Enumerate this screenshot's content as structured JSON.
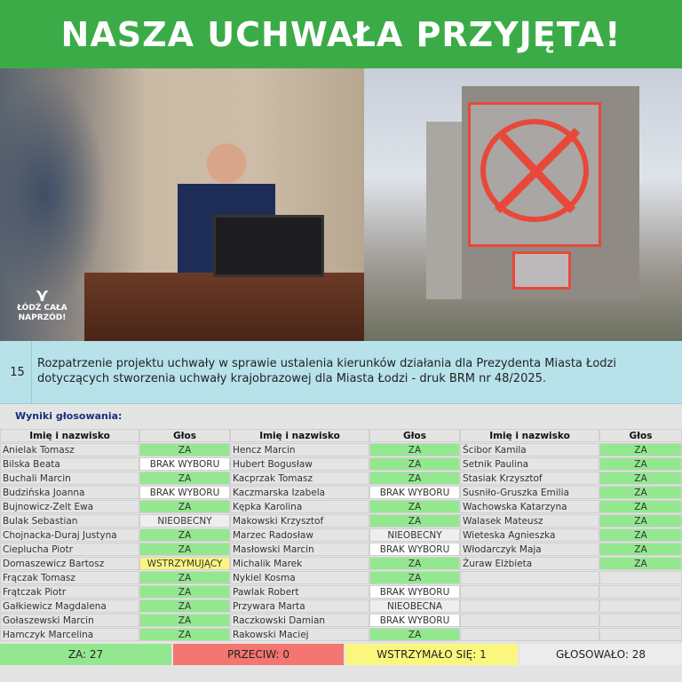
{
  "header": {
    "title": "NASZA UCHWAŁA PRZYJĘTA!"
  },
  "logo": {
    "text": "ŁÓDŹ CAŁA NAPRZÓD!"
  },
  "item": {
    "number": "15",
    "text": "Rozpatrzenie projektu uchwały w sprawie ustalenia kierunków działania dla Prezydenta Miasta Łodzi dotyczących stworzenia uchwały krajobrazowej dla Miasta Łodzi - druk BRM nr 48/2025."
  },
  "results_label": "Wyniki głosowania:",
  "columns": {
    "name": "Imię i nazwisko",
    "vote": "Głos"
  },
  "vote_colors": {
    "ZA": "#93e88f",
    "BRAK WYBORU": "#ffffff",
    "NIEOBECNY": "#eeeeee",
    "NIEOBECNA": "#eeeeee",
    "WSTRZYMUJĄCY": "#fbf77e"
  },
  "groups": [
    [
      [
        "Anielak Tomasz",
        "ZA"
      ],
      [
        "Bilska Beata",
        "BRAK WYBORU"
      ],
      [
        "Buchali Marcin",
        "ZA"
      ],
      [
        "Budzińska Joanna",
        "BRAK WYBORU"
      ],
      [
        "Bujnowicz-Zelt Ewa",
        "ZA"
      ],
      [
        "Bulak Sebastian",
        "NIEOBECNY"
      ],
      [
        "Chojnacka-Duraj Justyna",
        "ZA"
      ],
      [
        "Cieplucha Piotr",
        "ZA"
      ],
      [
        "Domaszewicz Bartosz",
        "WSTRZYMUJĄCY"
      ],
      [
        "Frączak Tomasz",
        "ZA"
      ],
      [
        "Frątczak Piotr",
        "ZA"
      ],
      [
        "Gałkiewicz Magdalena",
        "ZA"
      ],
      [
        "Gołaszewski  Marcin",
        "ZA"
      ],
      [
        "Hamczyk Marcelina",
        "ZA"
      ]
    ],
    [
      [
        "Hencz Marcin",
        "ZA"
      ],
      [
        "Hubert Bogusław",
        "ZA"
      ],
      [
        "Kacprzak Tomasz",
        "ZA"
      ],
      [
        "Kaczmarska Izabela",
        "BRAK WYBORU"
      ],
      [
        "Kępka Karolina",
        "ZA"
      ],
      [
        "Makowski Krzysztof",
        "ZA"
      ],
      [
        "Marzec Radosław",
        "NIEOBECNY"
      ],
      [
        "Masłowski Marcin",
        "BRAK WYBORU"
      ],
      [
        "Michalik Marek",
        "ZA"
      ],
      [
        "Nykiel Kosma",
        "ZA"
      ],
      [
        "Pawlak Robert",
        "BRAK WYBORU"
      ],
      [
        "Przywara Marta",
        "NIEOBECNA"
      ],
      [
        "Raczkowski Damian",
        "BRAK WYBORU"
      ],
      [
        "Rakowski Maciej",
        "ZA"
      ]
    ],
    [
      [
        "Ścibor Kamila",
        "ZA"
      ],
      [
        "Setnik Paulina",
        "ZA"
      ],
      [
        "Stasiak Krzysztof",
        "ZA"
      ],
      [
        "Susniło-Gruszka Emilia",
        "ZA"
      ],
      [
        "Wachowska Katarzyna",
        "ZA"
      ],
      [
        "Walasek Mateusz",
        "ZA"
      ],
      [
        "Wieteska Agnieszka",
        "ZA"
      ],
      [
        "Włodarczyk Maja",
        "ZA"
      ],
      [
        "Żuraw Elżbieta",
        "ZA"
      ]
    ]
  ],
  "summary": {
    "za": {
      "label": "ZA: 27",
      "color": "#93e88f"
    },
    "przeciw": {
      "label": "PRZECIW: 0",
      "color": "#f47670"
    },
    "wstrzymalo": {
      "label": "WSTRZYMAŁO SIĘ: 1",
      "color": "#fbf77e"
    },
    "glosowalo": {
      "label": "GŁOSOWAŁO: 28",
      "color": "#ececec"
    }
  }
}
